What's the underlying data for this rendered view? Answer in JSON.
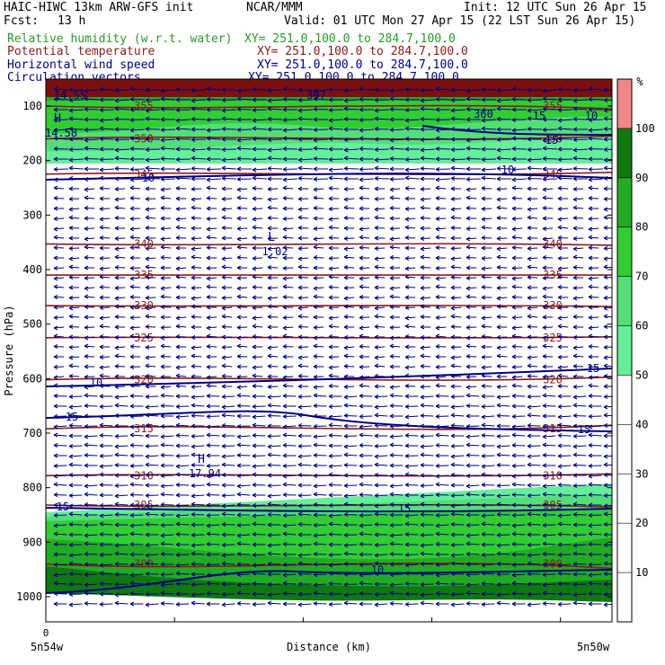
{
  "header": {
    "title_left": "HAIC-HIWC 13km ARW-GFS init",
    "org": "NCAR/MMM",
    "init": "Init: 12 UTC Sun 26 Apr 15",
    "fcst_label": "Fcst:",
    "fcst_value": "13 h",
    "valid": "Valid: 01 UTC Mon 27 Apr 15 (22 LST Sun 26 Apr 15)",
    "fields": [
      {
        "name": "Relative humidity (w.r.t. water)",
        "xy": "XY= 251.0,100.0 to 284.7,100.0",
        "color": "#2a9a2a"
      },
      {
        "name": "Potential temperature",
        "xy": "XY= 251.0,100.0 to 284.7,100.0",
        "color": "#8b1a1a"
      },
      {
        "name": "Horizontal wind speed",
        "xy": "XY= 251.0,100.0 to 284.7,100.0",
        "color": "#000080"
      },
      {
        "name": "Circulation vectors",
        "xy": "XY= 251.0,100.0 to 284.7,100.0",
        "color": "#000080"
      }
    ]
  },
  "chart_data": {
    "type": "cross-section",
    "ylabel": "Pressure (hPa)",
    "xlabel": "Distance (km)",
    "x_left_label": "5n54w",
    "x_right_label": "5n50w",
    "x_zero_label": "0",
    "y_ticks": [
      100,
      200,
      300,
      400,
      500,
      600,
      700,
      800,
      900,
      1000
    ],
    "y_scale": "linear, inverted",
    "ylim": [
      1050,
      80
    ],
    "colorbar": {
      "unit": "%",
      "ticks": [
        10,
        20,
        30,
        40,
        50,
        60,
        70,
        80,
        90,
        100
      ],
      "bins": [
        {
          "range": [
            50,
            60
          ],
          "color": "#66ee99"
        },
        {
          "range": [
            60,
            70
          ],
          "color": "#55dd77"
        },
        {
          "range": [
            70,
            80
          ],
          "color": "#33cc33"
        },
        {
          "range": [
            80,
            90
          ],
          "color": "#22aa22"
        },
        {
          "range": [
            90,
            100
          ],
          "color": "#117711"
        },
        {
          "range": [
            100,
            110
          ],
          "color": "#ee8888"
        }
      ]
    },
    "theta_contours": [
      {
        "value": 355,
        "labels": [
          "355",
          "355"
        ],
        "p": 100
      },
      {
        "value": 350,
        "labels": [
          "350",
          "350"
        ],
        "p": 160
      },
      {
        "value": 345,
        "labels": [
          "345",
          "345"
        ],
        "p": 225
      },
      {
        "value": 340,
        "labels": [
          "340",
          "340"
        ],
        "p": 353
      },
      {
        "value": 335,
        "labels": [
          "335",
          "335"
        ],
        "p": 410
      },
      {
        "value": 330,
        "labels": [
          "330",
          "330"
        ],
        "p": 466
      },
      {
        "value": 325,
        "labels": [
          "325",
          "325"
        ],
        "p": 525
      },
      {
        "value": 320,
        "labels": [
          "320",
          "320"
        ],
        "p": 602
      },
      {
        "value": 315,
        "labels": [
          "315",
          "315"
        ],
        "p": 692
      },
      {
        "value": 310,
        "labels": [
          "310",
          "310"
        ],
        "p": 778
      },
      {
        "value": 305,
        "labels": [
          "305",
          "305"
        ],
        "p": 832
      },
      {
        "value": 300,
        "labels": [
          "300",
          "300"
        ],
        "p": 940
      }
    ],
    "wind_contour_labels": [
      "10",
      "10",
      "10",
      "15",
      "15",
      "15",
      "15",
      "15",
      "10",
      "15",
      "15",
      "10"
    ],
    "extrema": [
      {
        "type": "L",
        "value": "1.02",
        "p": 370
      },
      {
        "type": "H",
        "value": "17.94",
        "p": 790
      },
      {
        "type": "H",
        "value": "14.58",
        "p": 150
      }
    ],
    "top_labels": [
      "397",
      "360",
      "14.55"
    ]
  }
}
